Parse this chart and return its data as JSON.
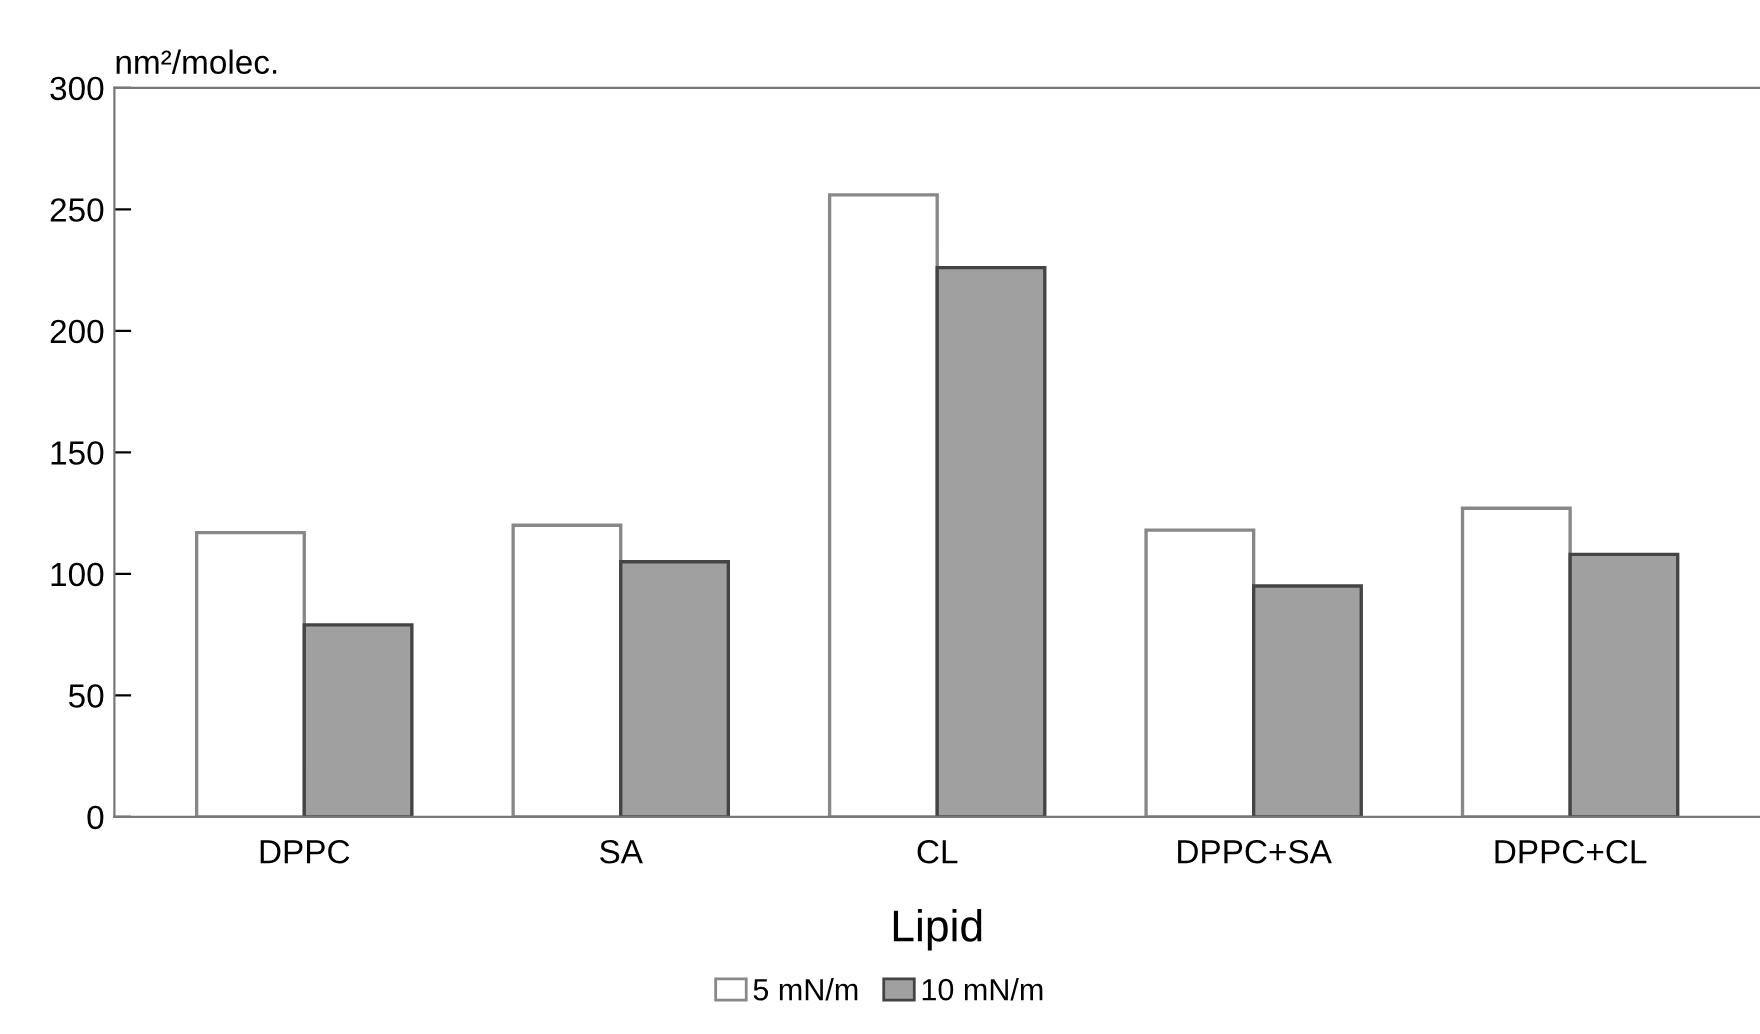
{
  "chart_data": {
    "type": "bar",
    "xlabel": "Lipid",
    "ylabel": "nm²/molec.",
    "categories": [
      "DPPC",
      "SA",
      "CL",
      "DPPC+SA",
      "DPPC+CL"
    ],
    "series": [
      {
        "name": "5 mN/m",
        "color": "#ffffff",
        "values": [
          117,
          120,
          256,
          118,
          127
        ]
      },
      {
        "name": "10 mN/m",
        "color": "#a0a0a0",
        "values": [
          79,
          105,
          226,
          95,
          108
        ]
      }
    ],
    "ylim": [
      0,
      300
    ],
    "yticks": [
      0,
      50,
      100,
      150,
      200,
      250,
      300
    ],
    "grid": false,
    "legend": "bottom"
  }
}
